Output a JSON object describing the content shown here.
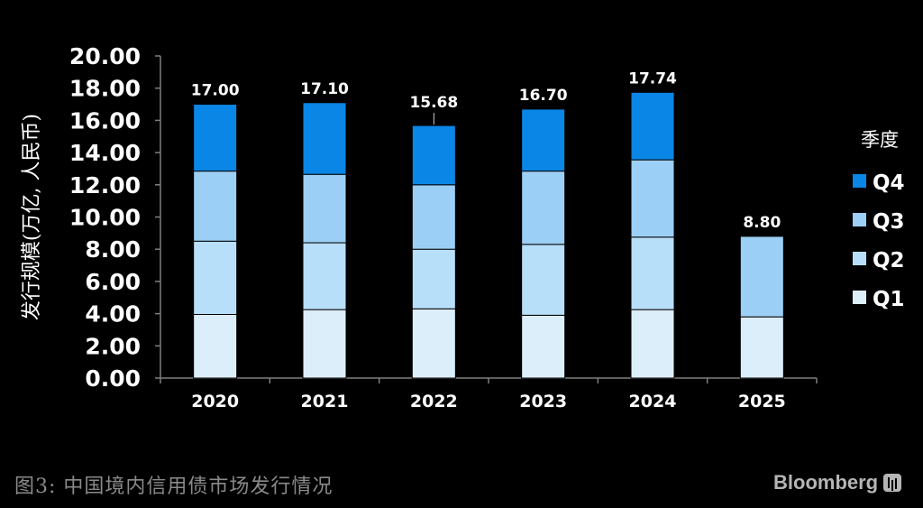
{
  "chart_data": {
    "type": "bar",
    "stacked": true,
    "categories": [
      "2020",
      "2021",
      "2022",
      "2023",
      "2024",
      "2025"
    ],
    "series": [
      {
        "name": "Q1",
        "values": [
          3.95,
          4.25,
          4.3,
          3.9,
          4.25,
          3.8
        ]
      },
      {
        "name": "Q2",
        "values": [
          4.55,
          4.15,
          3.7,
          4.4,
          4.5,
          0
        ]
      },
      {
        "name": "Q3",
        "values": [
          4.35,
          4.25,
          4.0,
          4.55,
          4.8,
          5.0
        ]
      },
      {
        "name": "Q4",
        "values": [
          4.15,
          4.45,
          3.68,
          3.85,
          4.19,
          0
        ]
      }
    ],
    "totals": [
      "17.00",
      "17.10",
      "15.68",
      "16.70",
      "17.74",
      "8.80"
    ],
    "ylabel": "发行规模(万亿, 人民币)",
    "xlabel": "",
    "ylim": [
      0,
      20
    ],
    "yticks": [
      "0.00",
      "2.00",
      "4.00",
      "6.00",
      "8.00",
      "10.00",
      "12.00",
      "14.00",
      "16.00",
      "18.00",
      "20.00"
    ],
    "legend": {
      "title": "季度",
      "items": [
        "Q4",
        "Q3",
        "Q2",
        "Q1"
      ],
      "position": "right"
    },
    "grid": false
  },
  "colors": {
    "background": "#000000",
    "Q1": "#DDEEFB",
    "Q2": "#B8DFF9",
    "Q3": "#9CCFF5",
    "Q4": "#0A86E6",
    "axis": "#7f7f7f"
  },
  "caption": "图3: 中国境内信用债市场发行情况",
  "brand": "Bloomberg"
}
